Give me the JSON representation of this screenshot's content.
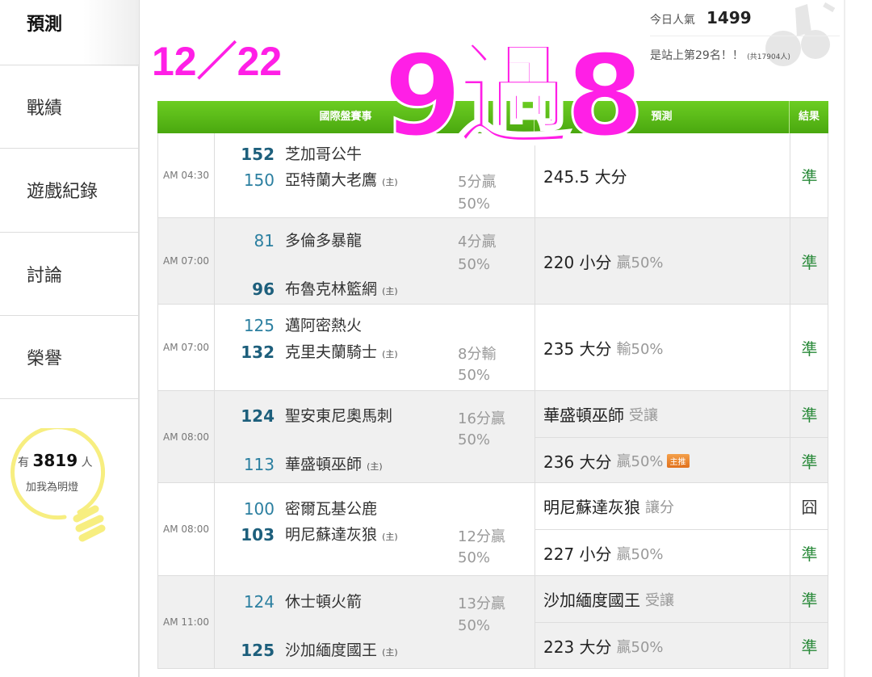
{
  "sidebar": {
    "items": [
      {
        "label": "預測",
        "selected": true
      },
      {
        "label": "戰績"
      },
      {
        "label": "遊戲紀錄"
      },
      {
        "label": "討論"
      },
      {
        "label": "榮譽"
      }
    ],
    "fans": {
      "prefix": "有",
      "count": "3819",
      "suffix": "人",
      "caption": "加我為明燈"
    }
  },
  "header": {
    "date": "12／22",
    "popularity_label": "今日人氣",
    "popularity": "1499",
    "rank_text": "是站上第29名！！",
    "total_text": "(共17904人)"
  },
  "table": {
    "columns": [
      "國際盤賽事",
      "預測",
      "結果"
    ],
    "games": [
      {
        "time": "AM 04:30",
        "away": {
          "num": "152",
          "name": "芝加哥公牛"
        },
        "home": {
          "num": "150",
          "name": "亞特蘭大老鷹",
          "tag": "(主)"
        },
        "line": [
          "5分贏",
          "50%"
        ],
        "preds": [
          {
            "main": "245.5 大分",
            "sub": "",
            "result": "準"
          }
        ]
      },
      {
        "time": "AM 07:00",
        "away": {
          "num": "81",
          "name": "多倫多暴龍"
        },
        "home": {
          "num": "96",
          "name": "布魯克林籃網",
          "tag": "(主)"
        },
        "line": [
          "4分贏",
          "50%"
        ],
        "preds": [
          {
            "main": "220 小分",
            "sub": "贏50%",
            "result": "準"
          }
        ]
      },
      {
        "time": "AM 07:00",
        "away": {
          "num": "125",
          "name": "邁阿密熱火"
        },
        "home": {
          "num": "132",
          "name": "克里夫蘭騎士",
          "tag": "(主)"
        },
        "line": [
          "8分輸",
          "50%"
        ],
        "preds": [
          {
            "main": "235 大分",
            "sub": "輸50%",
            "result": "準"
          }
        ]
      },
      {
        "time": "AM 08:00",
        "away": {
          "num": "124",
          "name": "聖安東尼奧馬刺"
        },
        "home": {
          "num": "113",
          "name": "華盛頓巫師",
          "tag": "(主)"
        },
        "line": [
          "16分贏",
          "50%"
        ],
        "preds": [
          {
            "main": "華盛頓巫師",
            "sub": "受讓",
            "result": "準"
          },
          {
            "main": "236 大分",
            "sub": "贏50%",
            "badge": "主推",
            "result": "準"
          }
        ]
      },
      {
        "time": "AM 08:00",
        "away": {
          "num": "100",
          "name": "密爾瓦基公鹿"
        },
        "home": {
          "num": "103",
          "name": "明尼蘇達灰狼",
          "tag": "(主)"
        },
        "line": [
          "12分贏",
          "50%"
        ],
        "preds": [
          {
            "main": "明尼蘇達灰狼",
            "sub": "讓分",
            "result": "囧"
          },
          {
            "main": "227 小分",
            "sub": "贏50%",
            "result": "準"
          }
        ]
      },
      {
        "time": "AM 11:00",
        "away": {
          "num": "124",
          "name": "休士頓火箭"
        },
        "home": {
          "num": "125",
          "name": "沙加緬度國王",
          "tag": "(主)"
        },
        "line": [
          "13分贏",
          "50%"
        ],
        "preds": [
          {
            "main": "沙加緬度國王",
            "sub": "受讓",
            "result": "準"
          },
          {
            "main": "223 大分",
            "sub": "贏50%",
            "result": "準"
          }
        ]
      }
    ]
  },
  "overlay": {
    "text": "9過8"
  },
  "colors": {
    "accent_magenta": "#ff1fe6",
    "header_green": "#5cbb18",
    "correct_green": "#2a8a3a",
    "bulb_yellow": "#f7ee80"
  }
}
